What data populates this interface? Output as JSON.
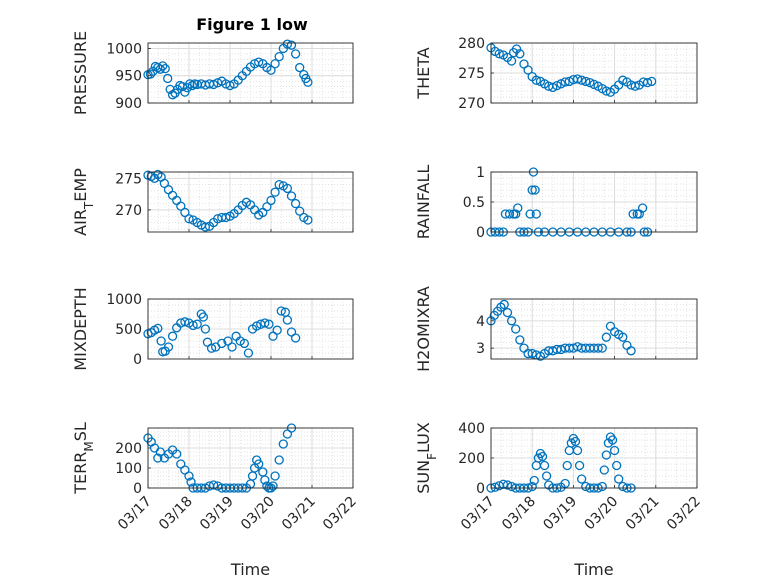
{
  "figure": {
    "title": "Figure 1 low",
    "xlabel": "Time",
    "x_tick_labels": [
      "03/17",
      "03/18",
      "03/19",
      "03/20",
      "03/21",
      "03/22"
    ]
  },
  "chart_data": [
    {
      "type": "scatter",
      "ylabel": "PRESSURE",
      "ylim": [
        900,
        1010
      ],
      "yticks": [
        900,
        950,
        1000
      ],
      "xlim": [
        "03/17",
        "03/22"
      ],
      "grid": true,
      "marker": "open-circle",
      "color": "#0072BD",
      "points": [
        [
          0.0,
          952
        ],
        [
          0.06,
          953
        ],
        [
          0.12,
          958
        ],
        [
          0.18,
          967
        ],
        [
          0.24,
          965
        ],
        [
          0.3,
          962
        ],
        [
          0.36,
          968
        ],
        [
          0.42,
          963
        ],
        [
          0.48,
          945
        ],
        [
          0.54,
          925
        ],
        [
          0.6,
          915
        ],
        [
          0.66,
          918
        ],
        [
          0.72,
          925
        ],
        [
          0.78,
          932
        ],
        [
          0.84,
          930
        ],
        [
          0.9,
          920
        ],
        [
          0.96,
          928
        ],
        [
          1.02,
          935
        ],
        [
          1.08,
          932
        ],
        [
          1.14,
          935
        ],
        [
          1.2,
          934
        ],
        [
          1.3,
          935
        ],
        [
          1.4,
          933
        ],
        [
          1.5,
          935
        ],
        [
          1.6,
          934
        ],
        [
          1.7,
          937
        ],
        [
          1.8,
          940
        ],
        [
          1.9,
          935
        ],
        [
          2.0,
          932
        ],
        [
          2.1,
          935
        ],
        [
          2.2,
          942
        ],
        [
          2.3,
          950
        ],
        [
          2.4,
          958
        ],
        [
          2.5,
          966
        ],
        [
          2.6,
          972
        ],
        [
          2.7,
          975
        ],
        [
          2.8,
          972
        ],
        [
          2.9,
          965
        ],
        [
          3.0,
          960
        ],
        [
          3.1,
          972
        ],
        [
          3.2,
          985
        ],
        [
          3.3,
          1000
        ],
        [
          3.4,
          1008
        ],
        [
          3.5,
          1006
        ],
        [
          3.6,
          990
        ],
        [
          3.7,
          965
        ],
        [
          3.8,
          952
        ],
        [
          3.85,
          945
        ],
        [
          3.9,
          938
        ]
      ]
    },
    {
      "type": "scatter",
      "ylabel": "THETA",
      "ylim": [
        270,
        280
      ],
      "yticks": [
        270,
        275,
        280
      ],
      "xlim": [
        "03/17",
        "03/22"
      ],
      "grid": true,
      "marker": "open-circle",
      "color": "#0072BD",
      "points": [
        [
          0.0,
          279.2
        ],
        [
          0.1,
          278.6
        ],
        [
          0.2,
          278.2
        ],
        [
          0.3,
          278.0
        ],
        [
          0.4,
          277.6
        ],
        [
          0.5,
          277.0
        ],
        [
          0.55,
          278.4
        ],
        [
          0.62,
          279.0
        ],
        [
          0.7,
          278.2
        ],
        [
          0.8,
          276.5
        ],
        [
          0.9,
          275.5
        ],
        [
          1.0,
          274.4
        ],
        [
          1.1,
          273.8
        ],
        [
          1.2,
          273.6
        ],
        [
          1.3,
          273.2
        ],
        [
          1.4,
          272.8
        ],
        [
          1.5,
          272.6
        ],
        [
          1.6,
          272.9
        ],
        [
          1.7,
          273.2
        ],
        [
          1.8,
          273.5
        ],
        [
          1.9,
          273.6
        ],
        [
          2.0,
          273.9
        ],
        [
          2.1,
          274.0
        ],
        [
          2.2,
          273.8
        ],
        [
          2.3,
          273.6
        ],
        [
          2.4,
          273.4
        ],
        [
          2.5,
          273.1
        ],
        [
          2.6,
          272.8
        ],
        [
          2.7,
          272.4
        ],
        [
          2.8,
          272.0
        ],
        [
          2.9,
          271.8
        ],
        [
          3.0,
          272.3
        ],
        [
          3.1,
          273.0
        ],
        [
          3.2,
          273.8
        ],
        [
          3.3,
          273.5
        ],
        [
          3.4,
          273.0
        ],
        [
          3.5,
          272.8
        ],
        [
          3.6,
          273.0
        ],
        [
          3.7,
          273.5
        ],
        [
          3.8,
          273.4
        ],
        [
          3.9,
          273.6
        ]
      ]
    },
    {
      "type": "scatter",
      "ylabel": "AIR_TEMP",
      "ylim": [
        266.5,
        276
      ],
      "yticks": [
        270,
        275
      ],
      "xlim": [
        "03/17",
        "03/22"
      ],
      "grid": true,
      "marker": "open-circle",
      "color": "#0072BD",
      "points": [
        [
          0.0,
          275.5
        ],
        [
          0.08,
          275.3
        ],
        [
          0.16,
          275.0
        ],
        [
          0.24,
          275.6
        ],
        [
          0.32,
          275.2
        ],
        [
          0.4,
          274.2
        ],
        [
          0.5,
          273.2
        ],
        [
          0.6,
          272.3
        ],
        [
          0.7,
          271.5
        ],
        [
          0.8,
          270.6
        ],
        [
          0.9,
          269.6
        ],
        [
          1.0,
          268.6
        ],
        [
          1.1,
          268.4
        ],
        [
          1.2,
          268.0
        ],
        [
          1.3,
          267.6
        ],
        [
          1.4,
          267.3
        ],
        [
          1.5,
          267.4
        ],
        [
          1.6,
          268.0
        ],
        [
          1.7,
          268.6
        ],
        [
          1.8,
          268.8
        ],
        [
          1.9,
          268.8
        ],
        [
          2.0,
          269.0
        ],
        [
          2.1,
          269.4
        ],
        [
          2.2,
          270.0
        ],
        [
          2.3,
          270.7
        ],
        [
          2.4,
          271.2
        ],
        [
          2.5,
          270.8
        ],
        [
          2.6,
          270.0
        ],
        [
          2.7,
          269.2
        ],
        [
          2.8,
          269.6
        ],
        [
          2.9,
          270.5
        ],
        [
          3.0,
          271.5
        ],
        [
          3.1,
          272.8
        ],
        [
          3.2,
          274.0
        ],
        [
          3.3,
          273.8
        ],
        [
          3.4,
          273.4
        ],
        [
          3.5,
          272.2
        ],
        [
          3.6,
          271.0
        ],
        [
          3.7,
          269.8
        ],
        [
          3.8,
          268.8
        ],
        [
          3.9,
          268.4
        ]
      ]
    },
    {
      "type": "scatter",
      "ylabel": "RAINFALL",
      "ylim": [
        0,
        1
      ],
      "yticks": [
        0,
        0.5,
        1
      ],
      "xlim": [
        "03/17",
        "03/22"
      ],
      "grid": true,
      "marker": "open-circle",
      "color": "#0072BD",
      "points": [
        [
          0.0,
          0
        ],
        [
          0.1,
          0
        ],
        [
          0.2,
          0
        ],
        [
          0.3,
          0
        ],
        [
          0.35,
          0.3
        ],
        [
          0.45,
          0.3
        ],
        [
          0.55,
          0.3
        ],
        [
          0.6,
          0.3
        ],
        [
          0.65,
          0.4
        ],
        [
          0.7,
          0
        ],
        [
          0.8,
          0
        ],
        [
          0.9,
          0
        ],
        [
          0.95,
          0.3
        ],
        [
          1.0,
          0.7
        ],
        [
          1.03,
          1.0
        ],
        [
          1.07,
          0.7
        ],
        [
          1.1,
          0.3
        ],
        [
          1.15,
          0
        ],
        [
          1.3,
          0
        ],
        [
          1.5,
          0
        ],
        [
          1.7,
          0
        ],
        [
          1.9,
          0
        ],
        [
          2.1,
          0
        ],
        [
          2.3,
          0
        ],
        [
          2.5,
          0
        ],
        [
          2.7,
          0
        ],
        [
          2.9,
          0
        ],
        [
          3.1,
          0
        ],
        [
          3.3,
          0
        ],
        [
          3.4,
          0
        ],
        [
          3.45,
          0.3
        ],
        [
          3.55,
          0.3
        ],
        [
          3.6,
          0.3
        ],
        [
          3.68,
          0.4
        ],
        [
          3.72,
          0
        ],
        [
          3.8,
          0
        ]
      ]
    },
    {
      "type": "scatter",
      "ylabel": "MIXDEPTH",
      "ylim": [
        0,
        1000
      ],
      "yticks": [
        0,
        500,
        1000
      ],
      "xlim": [
        "03/17",
        "03/22"
      ],
      "grid": true,
      "marker": "open-circle",
      "color": "#0072BD",
      "points": [
        [
          0.0,
          420
        ],
        [
          0.08,
          440
        ],
        [
          0.16,
          480
        ],
        [
          0.24,
          510
        ],
        [
          0.32,
          300
        ],
        [
          0.36,
          120
        ],
        [
          0.42,
          130
        ],
        [
          0.5,
          200
        ],
        [
          0.6,
          380
        ],
        [
          0.7,
          520
        ],
        [
          0.8,
          600
        ],
        [
          0.9,
          620
        ],
        [
          1.0,
          600
        ],
        [
          1.1,
          560
        ],
        [
          1.2,
          580
        ],
        [
          1.3,
          750
        ],
        [
          1.35,
          700
        ],
        [
          1.4,
          500
        ],
        [
          1.45,
          280
        ],
        [
          1.55,
          180
        ],
        [
          1.65,
          200
        ],
        [
          1.8,
          260
        ],
        [
          1.95,
          300
        ],
        [
          2.05,
          200
        ],
        [
          2.15,
          380
        ],
        [
          2.25,
          300
        ],
        [
          2.35,
          260
        ],
        [
          2.45,
          100
        ],
        [
          2.55,
          500
        ],
        [
          2.65,
          550
        ],
        [
          2.75,
          580
        ],
        [
          2.85,
          600
        ],
        [
          2.95,
          580
        ],
        [
          3.05,
          380
        ],
        [
          3.15,
          480
        ],
        [
          3.25,
          800
        ],
        [
          3.35,
          780
        ],
        [
          3.4,
          650
        ],
        [
          3.5,
          450
        ],
        [
          3.6,
          350
        ]
      ]
    },
    {
      "type": "scatter",
      "ylabel": "H2OMIXRA",
      "ylim": [
        2.6,
        4.8
      ],
      "yticks": [
        3,
        4
      ],
      "xlim": [
        "03/17",
        "03/22"
      ],
      "grid": true,
      "marker": "open-circle",
      "color": "#0072BD",
      "points": [
        [
          0.0,
          4.0
        ],
        [
          0.08,
          4.2
        ],
        [
          0.16,
          4.35
        ],
        [
          0.24,
          4.5
        ],
        [
          0.32,
          4.6
        ],
        [
          0.4,
          4.3
        ],
        [
          0.5,
          4.0
        ],
        [
          0.6,
          3.7
        ],
        [
          0.7,
          3.3
        ],
        [
          0.8,
          3.0
        ],
        [
          0.9,
          2.8
        ],
        [
          1.0,
          2.8
        ],
        [
          1.1,
          2.75
        ],
        [
          1.2,
          2.7
        ],
        [
          1.3,
          2.8
        ],
        [
          1.4,
          2.9
        ],
        [
          1.5,
          2.9
        ],
        [
          1.6,
          2.95
        ],
        [
          1.7,
          2.95
        ],
        [
          1.8,
          3.0
        ],
        [
          1.9,
          3.0
        ],
        [
          2.0,
          3.0
        ],
        [
          2.1,
          3.05
        ],
        [
          2.2,
          3.0
        ],
        [
          2.3,
          3.0
        ],
        [
          2.4,
          3.0
        ],
        [
          2.5,
          3.0
        ],
        [
          2.6,
          3.0
        ],
        [
          2.7,
          3.0
        ],
        [
          2.8,
          3.4
        ],
        [
          2.9,
          3.8
        ],
        [
          3.0,
          3.6
        ],
        [
          3.1,
          3.5
        ],
        [
          3.2,
          3.4
        ],
        [
          3.3,
          3.1
        ],
        [
          3.4,
          2.9
        ]
      ]
    },
    {
      "type": "scatter",
      "ylabel": "TERR_MSL",
      "ylim": [
        0,
        300
      ],
      "yticks": [
        0,
        100,
        200
      ],
      "xlim": [
        "03/17",
        "03/22"
      ],
      "grid": true,
      "marker": "open-circle",
      "color": "#0072BD",
      "points": [
        [
          0.0,
          250
        ],
        [
          0.08,
          230
        ],
        [
          0.16,
          200
        ],
        [
          0.24,
          150
        ],
        [
          0.3,
          180
        ],
        [
          0.4,
          150
        ],
        [
          0.5,
          170
        ],
        [
          0.6,
          190
        ],
        [
          0.7,
          170
        ],
        [
          0.8,
          120
        ],
        [
          0.9,
          90
        ],
        [
          1.0,
          60
        ],
        [
          1.05,
          30
        ],
        [
          1.1,
          0
        ],
        [
          1.2,
          0
        ],
        [
          1.3,
          0
        ],
        [
          1.4,
          0
        ],
        [
          1.5,
          10
        ],
        [
          1.6,
          15
        ],
        [
          1.7,
          10
        ],
        [
          1.8,
          0
        ],
        [
          1.9,
          0
        ],
        [
          2.0,
          0
        ],
        [
          2.1,
          0
        ],
        [
          2.2,
          0
        ],
        [
          2.3,
          0
        ],
        [
          2.4,
          0
        ],
        [
          2.5,
          20
        ],
        [
          2.55,
          60
        ],
        [
          2.6,
          100
        ],
        [
          2.65,
          140
        ],
        [
          2.7,
          120
        ],
        [
          2.8,
          80
        ],
        [
          2.85,
          40
        ],
        [
          2.9,
          10
        ],
        [
          2.95,
          0
        ],
        [
          3.0,
          0
        ],
        [
          3.05,
          10
        ],
        [
          3.1,
          60
        ],
        [
          3.2,
          140
        ],
        [
          3.3,
          220
        ],
        [
          3.4,
          270
        ],
        [
          3.5,
          300
        ]
      ]
    },
    {
      "type": "scatter",
      "ylabel": "SUN_FLUX",
      "ylim": [
        0,
        400
      ],
      "yticks": [
        0,
        200,
        400
      ],
      "xlim": [
        "03/17",
        "03/22"
      ],
      "grid": true,
      "marker": "open-circle",
      "color": "#0072BD",
      "points": [
        [
          0.0,
          0
        ],
        [
          0.1,
          5
        ],
        [
          0.2,
          15
        ],
        [
          0.3,
          25
        ],
        [
          0.4,
          20
        ],
        [
          0.5,
          10
        ],
        [
          0.6,
          0
        ],
        [
          0.7,
          0
        ],
        [
          0.8,
          0
        ],
        [
          0.9,
          0
        ],
        [
          1.0,
          10
        ],
        [
          1.05,
          50
        ],
        [
          1.1,
          150
        ],
        [
          1.15,
          200
        ],
        [
          1.2,
          230
        ],
        [
          1.25,
          210
        ],
        [
          1.3,
          150
        ],
        [
          1.35,
          80
        ],
        [
          1.4,
          20
        ],
        [
          1.5,
          0
        ],
        [
          1.6,
          0
        ],
        [
          1.7,
          5
        ],
        [
          1.8,
          30
        ],
        [
          1.85,
          150
        ],
        [
          1.9,
          250
        ],
        [
          1.95,
          300
        ],
        [
          2.0,
          330
        ],
        [
          2.05,
          310
        ],
        [
          2.1,
          250
        ],
        [
          2.15,
          150
        ],
        [
          2.2,
          60
        ],
        [
          2.3,
          10
        ],
        [
          2.4,
          0
        ],
        [
          2.5,
          0
        ],
        [
          2.6,
          0
        ],
        [
          2.7,
          10
        ],
        [
          2.75,
          120
        ],
        [
          2.8,
          220
        ],
        [
          2.85,
          300
        ],
        [
          2.9,
          340
        ],
        [
          2.95,
          320
        ],
        [
          3.0,
          250
        ],
        [
          3.05,
          150
        ],
        [
          3.1,
          60
        ],
        [
          3.2,
          10
        ],
        [
          3.3,
          0
        ],
        [
          3.4,
          0
        ]
      ]
    }
  ]
}
